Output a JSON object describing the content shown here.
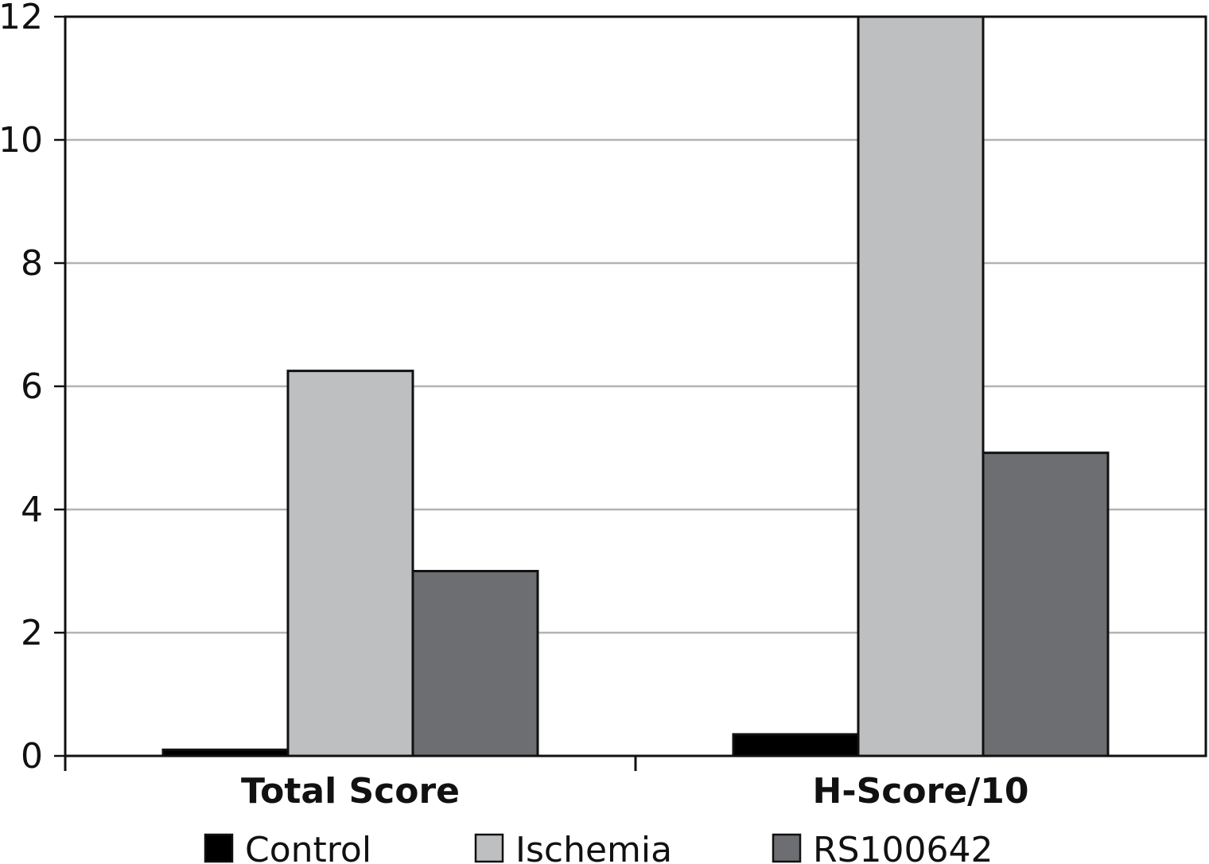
{
  "chart_data": {
    "type": "bar",
    "categories": [
      "Total Score",
      "H-Score/10"
    ],
    "series": [
      {
        "name": "Control",
        "values": [
          0.1,
          0.35
        ],
        "color": "#000000"
      },
      {
        "name": "Ischemia",
        "values": [
          6.25,
          12.0
        ],
        "color": "#bebfc1"
      },
      {
        "name": "RS100642",
        "values": [
          3.0,
          4.92
        ],
        "color": "#6d6e71"
      }
    ],
    "title": "",
    "xlabel": "",
    "ylabel": "",
    "ylim": [
      0,
      12
    ],
    "yticks": [
      "0",
      "2",
      "4",
      "6",
      "8",
      "10",
      "12"
    ],
    "grid": true,
    "legend_position": "bottom",
    "colors": {
      "grid": "#b3b3b3",
      "axis": "#111111",
      "bar_outline": "#111111"
    }
  }
}
